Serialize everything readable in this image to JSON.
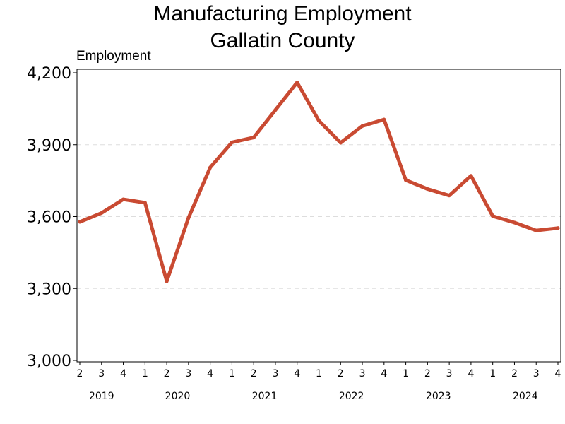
{
  "chart_data": {
    "type": "line",
    "title_line1": "Manufacturing Employment",
    "title_line2": "Gallatin County",
    "ylabel": "Employment",
    "xlabel": "",
    "ylim": [
      3000,
      4200
    ],
    "yticks": [
      3000,
      3300,
      3600,
      3900,
      4200
    ],
    "ytick_labels": [
      "3,000",
      "3,300",
      "3,600",
      "3,900",
      "4,200"
    ],
    "grid": "horizontal dashed",
    "x_quarters": [
      "2",
      "3",
      "4",
      "1",
      "2",
      "3",
      "4",
      "1",
      "2",
      "3",
      "4",
      "1",
      "2",
      "3",
      "4",
      "1",
      "2",
      "3",
      "4",
      "1",
      "2",
      "3",
      "4"
    ],
    "x_years": [
      {
        "label": "2019",
        "start_index": 0,
        "end_index": 2
      },
      {
        "label": "2020",
        "start_index": 3,
        "end_index": 6
      },
      {
        "label": "2021",
        "start_index": 7,
        "end_index": 10
      },
      {
        "label": "2022",
        "start_index": 11,
        "end_index": 14
      },
      {
        "label": "2023",
        "start_index": 15,
        "end_index": 18
      },
      {
        "label": "2024",
        "start_index": 19,
        "end_index": 22
      }
    ],
    "series": [
      {
        "values": [
          3578,
          3615,
          3672,
          3658,
          3330,
          3595,
          3805,
          3910,
          3930,
          4045,
          4160,
          4000,
          3908,
          3978,
          4005,
          3752,
          3715,
          3688,
          3770,
          3602,
          3575,
          3542,
          3552
        ]
      }
    ],
    "line_color": "#c94a32",
    "grid_color": "#dddddd"
  }
}
